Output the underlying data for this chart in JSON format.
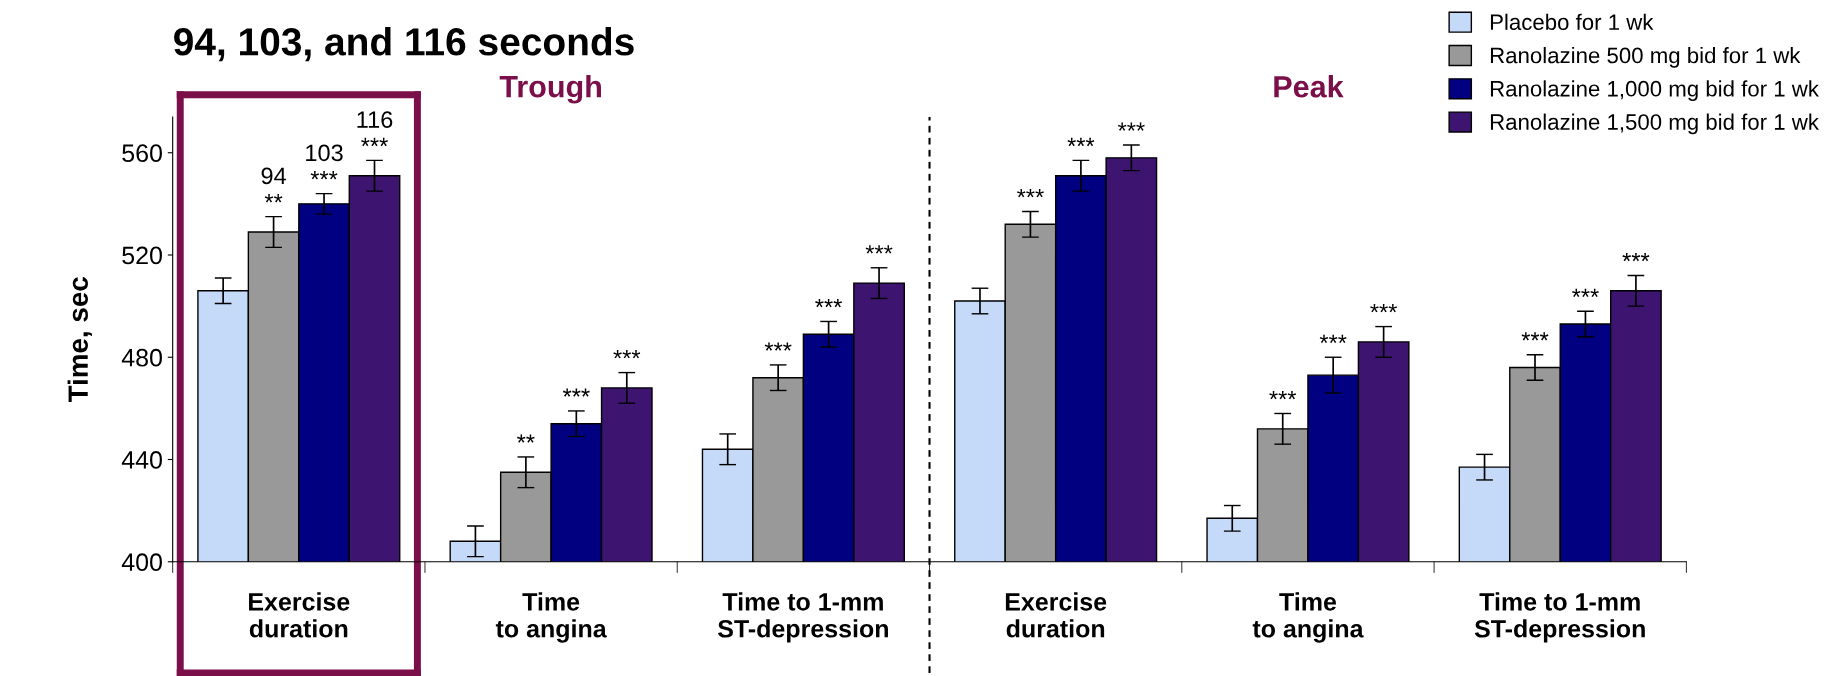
{
  "chart_data": {
    "type": "bar",
    "title": "94, 103, and 116 seconds",
    "ylabel": "Time, sec",
    "categories": [
      "Exercise\nduration",
      "Time\nto angina",
      "Time to 1-mm\nST-depression",
      "Exercise\nduration",
      "Time\nto angina",
      "Time to 1-mm\nST-depression"
    ],
    "series": [
      {
        "name": "Placebo for 1 wk",
        "color": "#c5d9f9",
        "values": [
          506,
          408,
          444,
          502,
          417,
          437
        ],
        "errors": [
          5,
          6,
          6,
          5,
          5,
          5
        ],
        "value_labels": [
          null,
          null,
          null,
          null,
          null,
          null
        ]
      },
      {
        "name": "Ranolazine 500 mg bid for 1 wk",
        "color": "#999999",
        "values": [
          529,
          435,
          472,
          532,
          452,
          476
        ],
        "errors": [
          6,
          6,
          5,
          5,
          6,
          5
        ],
        "value_labels": [
          "**",
          "**",
          "***",
          "***",
          "***",
          "***"
        ]
      },
      {
        "name": "Ranolazine 1,000 mg bid for 1 wk",
        "color": "#000080",
        "values": [
          540,
          454,
          489,
          551,
          473,
          493
        ],
        "errors": [
          4,
          5,
          5,
          6,
          7,
          5
        ],
        "value_labels": [
          "***",
          "***",
          "***",
          "***",
          "***",
          "***"
        ]
      },
      {
        "name": "Ranolazine 1,500 mg bid for 1 wk",
        "color": "#3d1470",
        "values": [
          551,
          468,
          509,
          558,
          486,
          506
        ],
        "errors": [
          6,
          6,
          6,
          5,
          6,
          6
        ],
        "value_labels": [
          "***",
          "***",
          "***",
          "***",
          "***",
          "***"
        ]
      }
    ],
    "ylim": [
      400,
      574
    ],
    "yticks": [
      400,
      440,
      480,
      520,
      560
    ],
    "annotations": [
      "Trough",
      "Peak",
      "94",
      "103",
      "116"
    ],
    "legend": "top right",
    "grid": false
  }
}
